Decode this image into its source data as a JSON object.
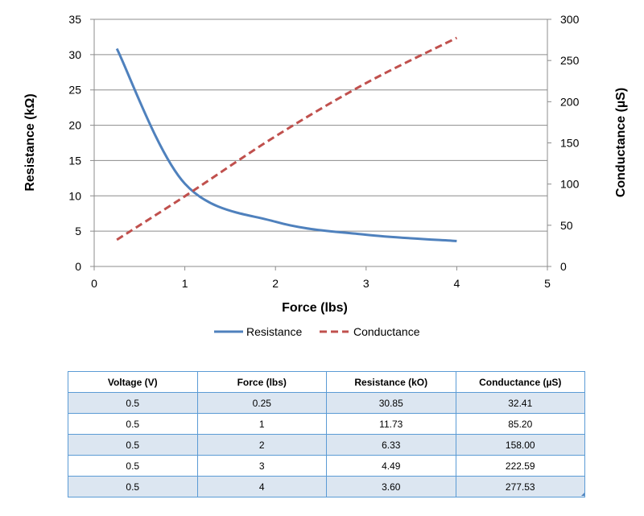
{
  "chart_data": {
    "type": "line",
    "xlabel": "Force (lbs)",
    "ylabel_left": "Resistance (kΩ)",
    "ylabel_right": "Conductance (µS)",
    "xlim": [
      0,
      5
    ],
    "xticks": [
      "0",
      "1",
      "2",
      "3",
      "4",
      "5"
    ],
    "y_left_lim": [
      0,
      35
    ],
    "y_left_ticks": [
      "0",
      "5",
      "10",
      "15",
      "20",
      "25",
      "30",
      "35"
    ],
    "y_right_lim": [
      0,
      300
    ],
    "y_right_ticks": [
      "0",
      "50",
      "100",
      "150",
      "200",
      "250",
      "300"
    ],
    "grid": true,
    "legend_position": "bottom",
    "series": [
      {
        "name": "Resistance",
        "axis": "left",
        "color": "#4f81bd",
        "style": "solid",
        "x": [
          0.25,
          1,
          2,
          3,
          4
        ],
        "y": [
          30.85,
          11.73,
          6.33,
          4.49,
          3.6
        ]
      },
      {
        "name": "Conductance",
        "axis": "right",
        "color": "#c0504d",
        "style": "dashed",
        "x": [
          0.25,
          1,
          2,
          3,
          4
        ],
        "y": [
          32.41,
          85.2,
          158.0,
          222.59,
          277.53
        ]
      }
    ]
  },
  "table": {
    "headers": [
      "Voltage (V)",
      "Force (lbs)",
      "Resistance (kO)",
      "Conductance (µS)"
    ],
    "rows": [
      [
        "0.5",
        "0.25",
        "30.85",
        "32.41"
      ],
      [
        "0.5",
        "1",
        "11.73",
        "85.20"
      ],
      [
        "0.5",
        "2",
        "6.33",
        "158.00"
      ],
      [
        "0.5",
        "3",
        "4.49",
        "222.59"
      ],
      [
        "0.5",
        "4",
        "3.60",
        "277.53"
      ]
    ]
  }
}
